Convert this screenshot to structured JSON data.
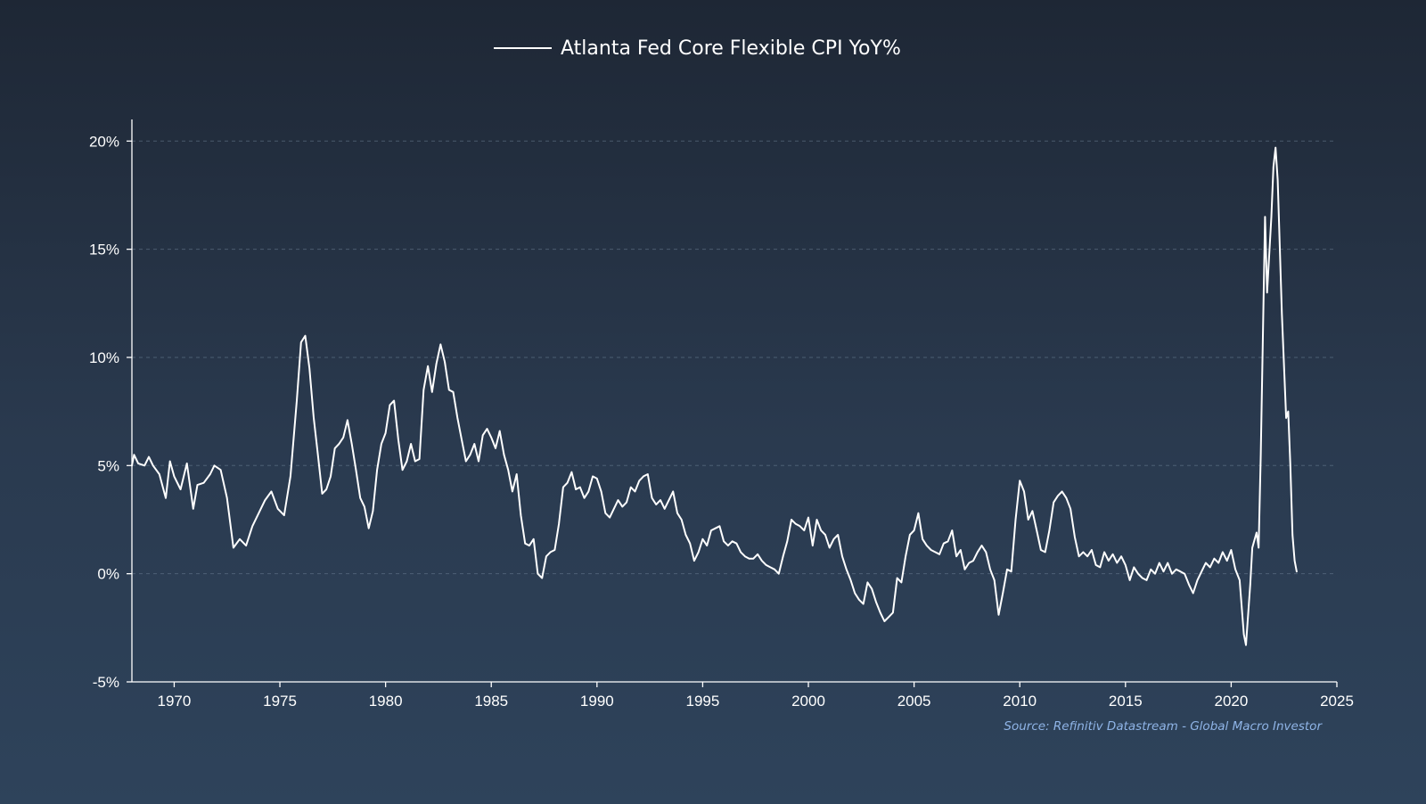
{
  "chart_data": {
    "type": "line",
    "title": "",
    "xlabel": "",
    "ylabel": "",
    "legend": {
      "position": "top-center",
      "entries": [
        "Atlanta Fed Core Flexible CPI YoY%"
      ]
    },
    "source": "Source: Refinitiv Datastream - Global Macro Investor",
    "xlim": [
      1968.0,
      2025.0
    ],
    "ylim": [
      -5,
      21
    ],
    "x_ticks": [
      1970,
      1975,
      1980,
      1985,
      1990,
      1995,
      2000,
      2005,
      2010,
      2015,
      2020,
      2025
    ],
    "x_tick_labels": [
      "1970",
      "1975",
      "1980",
      "1985",
      "1990",
      "1995",
      "2000",
      "2005",
      "2010",
      "2015",
      "2020",
      "2025"
    ],
    "y_ticks": [
      -5,
      0,
      5,
      10,
      15,
      20
    ],
    "y_tick_labels": [
      "-5%",
      "0%",
      "5%",
      "10%",
      "15%",
      "20%"
    ],
    "grid": "horizontal dashed",
    "colors": {
      "line": "#ffffff",
      "grid": "#6b7d93",
      "source": "#8fb4e6"
    },
    "series": [
      {
        "name": "Atlanta Fed Core Flexible CPI YoY%",
        "points": [
          [
            1968.0,
            5.0
          ],
          [
            1968.1,
            5.5
          ],
          [
            1968.3,
            5.1
          ],
          [
            1968.6,
            5.0
          ],
          [
            1968.8,
            5.4
          ],
          [
            1969.0,
            5.0
          ],
          [
            1969.3,
            4.6
          ],
          [
            1969.6,
            3.5
          ],
          [
            1969.8,
            5.2
          ],
          [
            1970.0,
            4.5
          ],
          [
            1970.3,
            3.9
          ],
          [
            1970.6,
            5.1
          ],
          [
            1970.9,
            3.0
          ],
          [
            1971.1,
            4.1
          ],
          [
            1971.4,
            4.2
          ],
          [
            1971.7,
            4.6
          ],
          [
            1971.9,
            5.0
          ],
          [
            1972.2,
            4.8
          ],
          [
            1972.5,
            3.5
          ],
          [
            1972.8,
            1.2
          ],
          [
            1973.1,
            1.6
          ],
          [
            1973.4,
            1.3
          ],
          [
            1973.7,
            2.2
          ],
          [
            1974.0,
            2.8
          ],
          [
            1974.3,
            3.4
          ],
          [
            1974.6,
            3.8
          ],
          [
            1974.9,
            3.0
          ],
          [
            1975.2,
            2.7
          ],
          [
            1975.5,
            4.5
          ],
          [
            1975.8,
            8.0
          ],
          [
            1976.0,
            10.7
          ],
          [
            1976.2,
            11.0
          ],
          [
            1976.4,
            9.5
          ],
          [
            1976.6,
            7.2
          ],
          [
            1976.8,
            5.5
          ],
          [
            1977.0,
            3.7
          ],
          [
            1977.2,
            3.9
          ],
          [
            1977.4,
            4.5
          ],
          [
            1977.6,
            5.8
          ],
          [
            1977.8,
            6.0
          ],
          [
            1978.0,
            6.3
          ],
          [
            1978.2,
            7.1
          ],
          [
            1978.4,
            6.0
          ],
          [
            1978.6,
            4.8
          ],
          [
            1978.8,
            3.5
          ],
          [
            1979.0,
            3.1
          ],
          [
            1979.2,
            2.1
          ],
          [
            1979.4,
            2.9
          ],
          [
            1979.6,
            4.8
          ],
          [
            1979.8,
            6.0
          ],
          [
            1980.0,
            6.5
          ],
          [
            1980.2,
            7.8
          ],
          [
            1980.4,
            8.0
          ],
          [
            1980.6,
            6.2
          ],
          [
            1980.8,
            4.8
          ],
          [
            1981.0,
            5.2
          ],
          [
            1981.2,
            6.0
          ],
          [
            1981.4,
            5.2
          ],
          [
            1981.6,
            5.3
          ],
          [
            1981.8,
            8.5
          ],
          [
            1982.0,
            9.6
          ],
          [
            1982.2,
            8.4
          ],
          [
            1982.4,
            9.7
          ],
          [
            1982.6,
            10.6
          ],
          [
            1982.8,
            9.8
          ],
          [
            1983.0,
            8.5
          ],
          [
            1983.2,
            8.4
          ],
          [
            1983.4,
            7.2
          ],
          [
            1983.6,
            6.2
          ],
          [
            1983.8,
            5.2
          ],
          [
            1984.0,
            5.5
          ],
          [
            1984.2,
            6.0
          ],
          [
            1984.4,
            5.2
          ],
          [
            1984.6,
            6.4
          ],
          [
            1984.8,
            6.7
          ],
          [
            1985.0,
            6.3
          ],
          [
            1985.2,
            5.8
          ],
          [
            1985.4,
            6.6
          ],
          [
            1985.6,
            5.5
          ],
          [
            1985.8,
            4.8
          ],
          [
            1986.0,
            3.8
          ],
          [
            1986.2,
            4.6
          ],
          [
            1986.4,
            2.7
          ],
          [
            1986.6,
            1.4
          ],
          [
            1986.8,
            1.3
          ],
          [
            1987.0,
            1.6
          ],
          [
            1987.2,
            0.0
          ],
          [
            1987.4,
            -0.2
          ],
          [
            1987.6,
            0.8
          ],
          [
            1987.8,
            1.0
          ],
          [
            1988.0,
            1.1
          ],
          [
            1988.2,
            2.3
          ],
          [
            1988.4,
            4.0
          ],
          [
            1988.6,
            4.2
          ],
          [
            1988.8,
            4.7
          ],
          [
            1989.0,
            3.9
          ],
          [
            1989.2,
            4.0
          ],
          [
            1989.4,
            3.5
          ],
          [
            1989.6,
            3.8
          ],
          [
            1989.8,
            4.5
          ],
          [
            1990.0,
            4.4
          ],
          [
            1990.2,
            3.8
          ],
          [
            1990.4,
            2.8
          ],
          [
            1990.6,
            2.6
          ],
          [
            1990.8,
            3.0
          ],
          [
            1991.0,
            3.4
          ],
          [
            1991.2,
            3.1
          ],
          [
            1991.4,
            3.3
          ],
          [
            1991.6,
            4.0
          ],
          [
            1991.8,
            3.8
          ],
          [
            1992.0,
            4.3
          ],
          [
            1992.2,
            4.5
          ],
          [
            1992.4,
            4.6
          ],
          [
            1992.6,
            3.5
          ],
          [
            1992.8,
            3.2
          ],
          [
            1993.0,
            3.4
          ],
          [
            1993.2,
            3.0
          ],
          [
            1993.4,
            3.4
          ],
          [
            1993.6,
            3.8
          ],
          [
            1993.8,
            2.8
          ],
          [
            1994.0,
            2.5
          ],
          [
            1994.2,
            1.8
          ],
          [
            1994.4,
            1.4
          ],
          [
            1994.6,
            0.6
          ],
          [
            1994.8,
            1.0
          ],
          [
            1995.0,
            1.6
          ],
          [
            1995.2,
            1.3
          ],
          [
            1995.4,
            2.0
          ],
          [
            1995.6,
            2.1
          ],
          [
            1995.8,
            2.2
          ],
          [
            1996.0,
            1.5
          ],
          [
            1996.2,
            1.3
          ],
          [
            1996.4,
            1.5
          ],
          [
            1996.6,
            1.4
          ],
          [
            1996.8,
            1.0
          ],
          [
            1997.0,
            0.8
          ],
          [
            1997.2,
            0.7
          ],
          [
            1997.4,
            0.7
          ],
          [
            1997.6,
            0.9
          ],
          [
            1997.8,
            0.6
          ],
          [
            1998.0,
            0.4
          ],
          [
            1998.2,
            0.3
          ],
          [
            1998.4,
            0.2
          ],
          [
            1998.6,
            0.0
          ],
          [
            1998.8,
            0.8
          ],
          [
            1999.0,
            1.5
          ],
          [
            1999.2,
            2.5
          ],
          [
            1999.4,
            2.3
          ],
          [
            1999.6,
            2.2
          ],
          [
            1999.8,
            2.0
          ],
          [
            2000.0,
            2.6
          ],
          [
            2000.2,
            1.3
          ],
          [
            2000.4,
            2.5
          ],
          [
            2000.6,
            2.0
          ],
          [
            2000.8,
            1.8
          ],
          [
            2001.0,
            1.2
          ],
          [
            2001.2,
            1.6
          ],
          [
            2001.4,
            1.8
          ],
          [
            2001.6,
            0.8
          ],
          [
            2001.8,
            0.2
          ],
          [
            2002.0,
            -0.3
          ],
          [
            2002.2,
            -0.9
          ],
          [
            2002.4,
            -1.2
          ],
          [
            2002.6,
            -1.4
          ],
          [
            2002.8,
            -0.4
          ],
          [
            2003.0,
            -0.7
          ],
          [
            2003.2,
            -1.3
          ],
          [
            2003.4,
            -1.8
          ],
          [
            2003.6,
            -2.2
          ],
          [
            2003.8,
            -2.0
          ],
          [
            2004.0,
            -1.8
          ],
          [
            2004.2,
            -0.2
          ],
          [
            2004.4,
            -0.4
          ],
          [
            2004.6,
            0.8
          ],
          [
            2004.8,
            1.8
          ],
          [
            2005.0,
            2.0
          ],
          [
            2005.2,
            2.8
          ],
          [
            2005.4,
            1.6
          ],
          [
            2005.6,
            1.3
          ],
          [
            2005.8,
            1.1
          ],
          [
            2006.0,
            1.0
          ],
          [
            2006.2,
            0.9
          ],
          [
            2006.4,
            1.4
          ],
          [
            2006.6,
            1.5
          ],
          [
            2006.8,
            2.0
          ],
          [
            2007.0,
            0.8
          ],
          [
            2007.2,
            1.1
          ],
          [
            2007.4,
            0.2
          ],
          [
            2007.6,
            0.5
          ],
          [
            2007.8,
            0.6
          ],
          [
            2008.0,
            1.0
          ],
          [
            2008.2,
            1.3
          ],
          [
            2008.4,
            1.0
          ],
          [
            2008.6,
            0.2
          ],
          [
            2008.8,
            -0.3
          ],
          [
            2009.0,
            -1.9
          ],
          [
            2009.2,
            -0.9
          ],
          [
            2009.4,
            0.2
          ],
          [
            2009.6,
            0.1
          ],
          [
            2009.8,
            2.5
          ],
          [
            2010.0,
            4.3
          ],
          [
            2010.2,
            3.8
          ],
          [
            2010.4,
            2.5
          ],
          [
            2010.6,
            2.9
          ],
          [
            2010.8,
            2.0
          ],
          [
            2011.0,
            1.1
          ],
          [
            2011.2,
            1.0
          ],
          [
            2011.4,
            2.0
          ],
          [
            2011.6,
            3.3
          ],
          [
            2011.8,
            3.6
          ],
          [
            2012.0,
            3.8
          ],
          [
            2012.2,
            3.5
          ],
          [
            2012.4,
            3.0
          ],
          [
            2012.6,
            1.7
          ],
          [
            2012.8,
            0.8
          ],
          [
            2013.0,
            1.0
          ],
          [
            2013.2,
            0.8
          ],
          [
            2013.4,
            1.1
          ],
          [
            2013.6,
            0.4
          ],
          [
            2013.8,
            0.3
          ],
          [
            2014.0,
            1.0
          ],
          [
            2014.2,
            0.6
          ],
          [
            2014.4,
            0.9
          ],
          [
            2014.6,
            0.5
          ],
          [
            2014.8,
            0.8
          ],
          [
            2015.0,
            0.4
          ],
          [
            2015.2,
            -0.3
          ],
          [
            2015.4,
            0.3
          ],
          [
            2015.6,
            0.0
          ],
          [
            2015.8,
            -0.2
          ],
          [
            2016.0,
            -0.3
          ],
          [
            2016.2,
            0.2
          ],
          [
            2016.4,
            0.0
          ],
          [
            2016.6,
            0.5
          ],
          [
            2016.8,
            0.1
          ],
          [
            2017.0,
            0.5
          ],
          [
            2017.2,
            0.0
          ],
          [
            2017.4,
            0.2
          ],
          [
            2017.6,
            0.1
          ],
          [
            2017.8,
            0.0
          ],
          [
            2018.0,
            -0.5
          ],
          [
            2018.2,
            -0.9
          ],
          [
            2018.4,
            -0.3
          ],
          [
            2018.6,
            0.1
          ],
          [
            2018.8,
            0.5
          ],
          [
            2019.0,
            0.3
          ],
          [
            2019.2,
            0.7
          ],
          [
            2019.4,
            0.5
          ],
          [
            2019.6,
            1.0
          ],
          [
            2019.8,
            0.6
          ],
          [
            2020.0,
            1.1
          ],
          [
            2020.2,
            0.2
          ],
          [
            2020.4,
            -0.3
          ],
          [
            2020.6,
            -2.8
          ],
          [
            2020.7,
            -3.3
          ],
          [
            2020.9,
            -0.5
          ],
          [
            2021.0,
            1.2
          ],
          [
            2021.2,
            1.9
          ],
          [
            2021.3,
            1.2
          ],
          [
            2021.4,
            5.5
          ],
          [
            2021.6,
            16.5
          ],
          [
            2021.7,
            13.0
          ],
          [
            2021.9,
            16.5
          ],
          [
            2022.0,
            18.8
          ],
          [
            2022.1,
            19.7
          ],
          [
            2022.2,
            18.2
          ],
          [
            2022.4,
            12.0
          ],
          [
            2022.6,
            7.2
          ],
          [
            2022.7,
            7.5
          ],
          [
            2022.8,
            5.0
          ],
          [
            2022.9,
            1.8
          ],
          [
            2023.0,
            0.6
          ],
          [
            2023.1,
            0.1
          ]
        ]
      }
    ]
  }
}
